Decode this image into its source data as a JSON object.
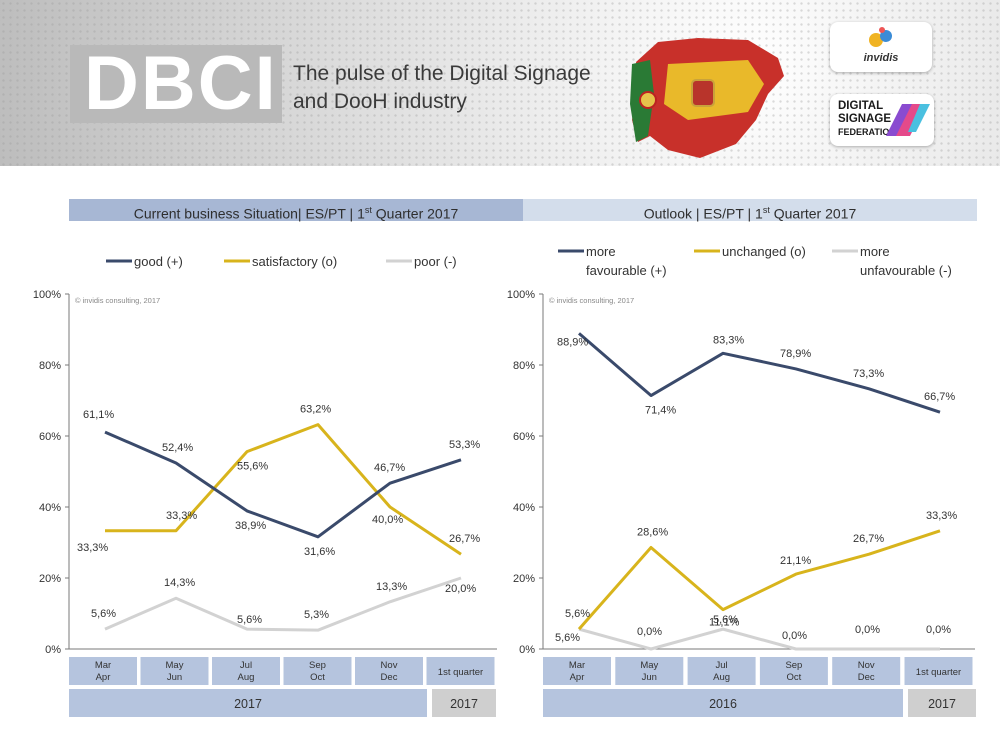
{
  "banner": {
    "brand": "DBCI",
    "tagline_line1": "The pulse of the Digital Signage",
    "tagline_line2": "and DooH industry",
    "logo_invidis": "invidis",
    "logo_dsf_line1": "DIGITAL",
    "logo_dsf_line2": "SIGNAGE",
    "logo_dsf_line3": "FEDERATION"
  },
  "colors": {
    "good": "#3a4a6b",
    "satisfactory": "#d8b41c",
    "poor": "#d2d2d2"
  },
  "chart_data": [
    {
      "type": "line",
      "title_pre": "Current business Situation| ES/PT | 1",
      "title_sup": "st",
      "title_post": " Quarter 2017",
      "watermark": "© invidis consulting, 2017",
      "ylim": [
        0,
        100
      ],
      "yticks": [
        "0%",
        "20%",
        "40%",
        "60%",
        "80%",
        "100%"
      ],
      "categories": [
        {
          "line1": "Mar",
          "line2": "Apr"
        },
        {
          "line1": "May",
          "line2": "Jun"
        },
        {
          "line1": "Jul",
          "line2": "Aug"
        },
        {
          "line1": "Sep",
          "line2": "Oct"
        },
        {
          "line1": "Nov",
          "line2": "Dec"
        },
        {
          "line1": "1st quarter",
          "line2": ""
        }
      ],
      "years": [
        "2017",
        "2017"
      ],
      "series": [
        {
          "name": "good (+)",
          "values": [
            61.1,
            52.4,
            38.9,
            31.6,
            46.7,
            53.3
          ],
          "labels": [
            "61,1%",
            "52,4%",
            "38,9%",
            "31,6%",
            "46,7%",
            "53,3%"
          ]
        },
        {
          "name": "satisfactory (o)",
          "values": [
            33.3,
            33.3,
            55.6,
            63.2,
            40.0,
            26.7
          ],
          "labels": [
            "33,3%",
            "33,3%",
            "55,6%",
            "63,2%",
            "40,0%",
            "26,7%"
          ]
        },
        {
          "name": "poor (-)",
          "values": [
            5.6,
            14.3,
            5.6,
            5.3,
            13.3,
            20.0
          ],
          "labels": [
            "5,6%",
            "14,3%",
            "5,6%",
            "5,3%",
            "13,3%",
            "20,0%"
          ]
        }
      ]
    },
    {
      "type": "line",
      "title_pre": "Outlook | ES/PT | 1",
      "title_sup": "st",
      "title_post": " Quarter 2017",
      "watermark": "© invidis consulting, 2017",
      "ylim": [
        0,
        100
      ],
      "yticks": [
        "0%",
        "20%",
        "40%",
        "60%",
        "80%",
        "100%"
      ],
      "categories": [
        {
          "line1": "Mar",
          "line2": "Apr"
        },
        {
          "line1": "May",
          "line2": "Jun"
        },
        {
          "line1": "Jul",
          "line2": "Aug"
        },
        {
          "line1": "Sep",
          "line2": "Oct"
        },
        {
          "line1": "Nov",
          "line2": "Dec"
        },
        {
          "line1": "1st quarter",
          "line2": ""
        }
      ],
      "years": [
        "2016",
        "2017"
      ],
      "series": [
        {
          "name_line1": "more",
          "name_line2": "favourable (+)",
          "values": [
            88.9,
            71.4,
            83.3,
            78.9,
            73.3,
            66.7
          ],
          "labels": [
            "88,9%",
            "71,4%",
            "83,3%",
            "78,9%",
            "73,3%",
            "66,7%"
          ]
        },
        {
          "name_line1": "unchanged (o)",
          "name_line2": "",
          "values": [
            5.6,
            28.6,
            11.1,
            21.1,
            26.7,
            33.3
          ],
          "labels": [
            "5,6%",
            "28,6%",
            "11,1%",
            "21,1%",
            "26,7%",
            "33,3%"
          ]
        },
        {
          "name_line1": "more",
          "name_line2": "unfavourable (-)",
          "values": [
            5.6,
            0.0,
            5.6,
            0.0,
            0.0,
            0.0
          ],
          "labels": [
            "5,6%",
            "0,0%",
            "5,6%",
            "0,0%",
            "0,0%",
            "0,0%"
          ]
        }
      ]
    }
  ]
}
